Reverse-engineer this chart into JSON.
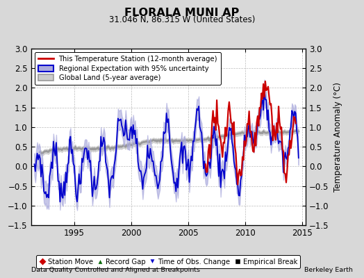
{
  "title": "FLORALA MUNI AP",
  "subtitle": "31.046 N, 86.315 W (United States)",
  "ylabel": "Temperature Anomaly (°C)",
  "xlabel_left": "Data Quality Controlled and Aligned at Breakpoints",
  "xlabel_right": "Berkeley Earth",
  "ylim": [
    -1.5,
    3.0
  ],
  "xlim": [
    1991.2,
    2015.3
  ],
  "yticks": [
    -1.5,
    -1.0,
    -0.5,
    0.0,
    0.5,
    1.0,
    1.5,
    2.0,
    2.5,
    3.0
  ],
  "xticks": [
    1995,
    2000,
    2005,
    2010,
    2015
  ],
  "background_color": "#d8d8d8",
  "plot_bg_color": "#ffffff",
  "red_color": "#cc0000",
  "blue_color": "#0000cc",
  "blue_fill_color": "#aaaadd",
  "gray_color": "#999999",
  "gray_fill_color": "#cccccc",
  "grid_color": "#bbbbbb",
  "legend1_labels": [
    "This Temperature Station (12-month average)",
    "Regional Expectation with 95% uncertainty",
    "Global Land (5-year average)"
  ],
  "legend2_labels": [
    "Station Move",
    "Record Gap",
    "Time of Obs. Change",
    "Empirical Break"
  ]
}
